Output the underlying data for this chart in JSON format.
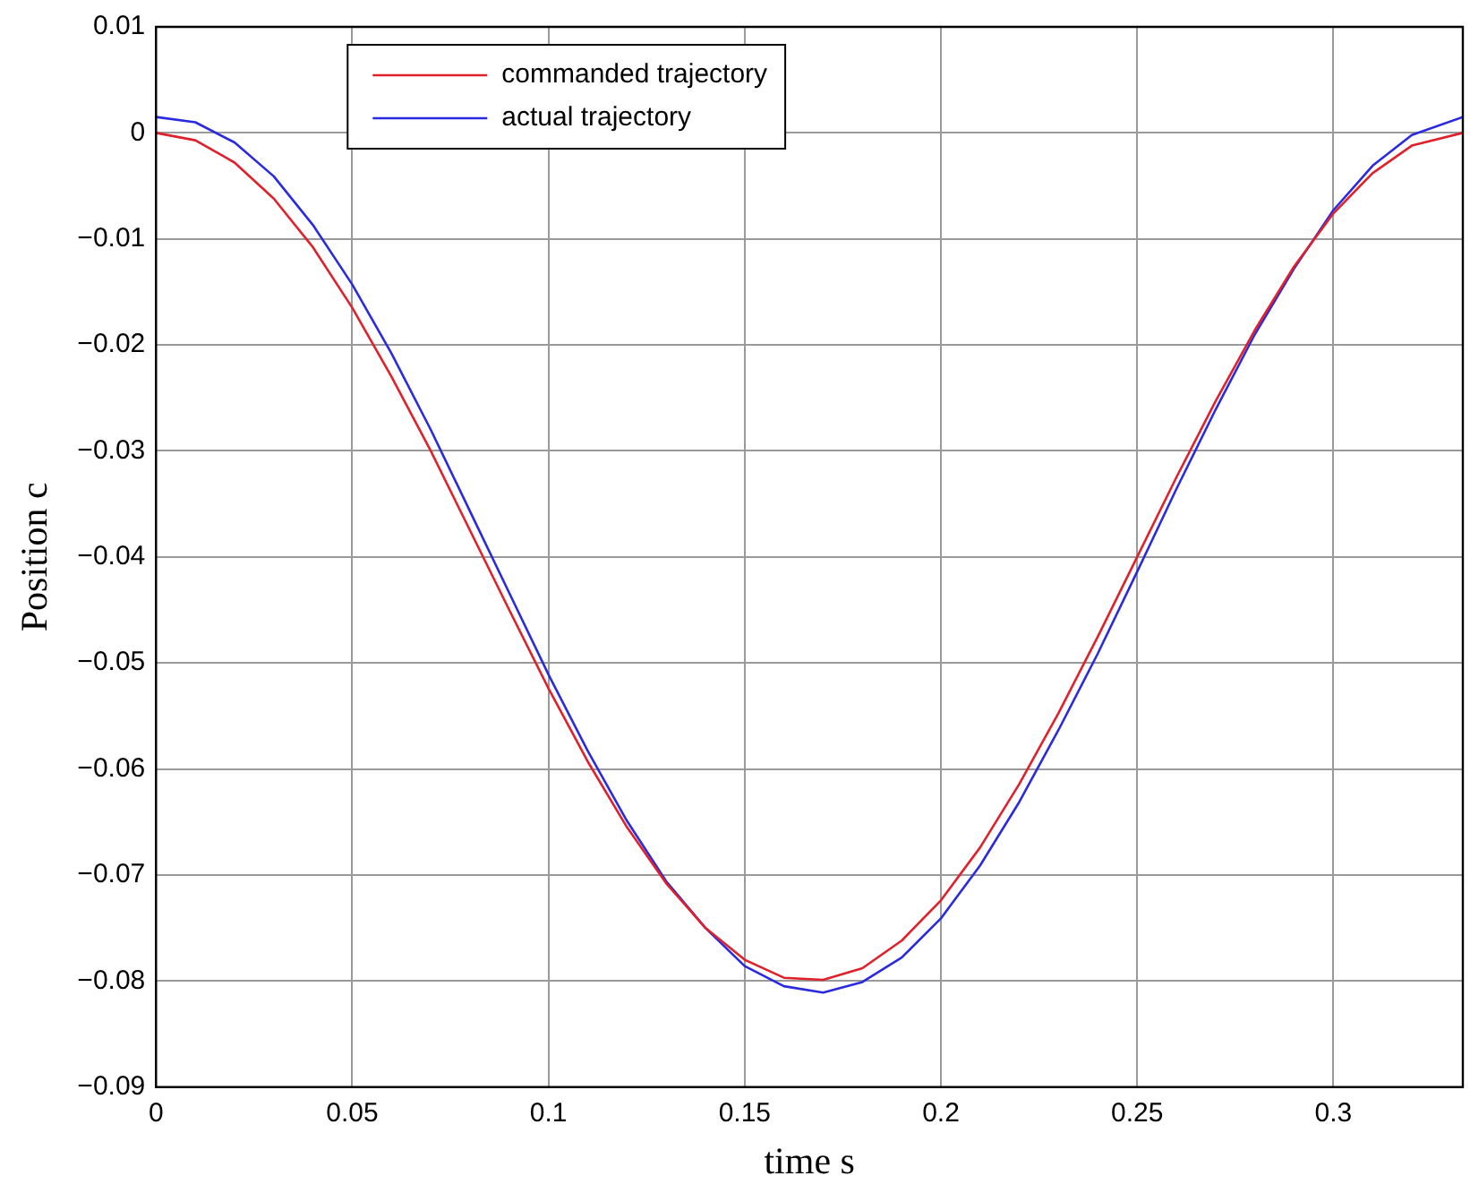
{
  "chart_data": {
    "type": "line",
    "xlabel": "time s",
    "ylabel": "Position c",
    "x": [
      0,
      0.01,
      0.02,
      0.03,
      0.04,
      0.05,
      0.06,
      0.07,
      0.08,
      0.09,
      0.1,
      0.11,
      0.12,
      0.13,
      0.14,
      0.15,
      0.16,
      0.17,
      0.18,
      0.19,
      0.2,
      0.21,
      0.22,
      0.23,
      0.24,
      0.25,
      0.26,
      0.27,
      0.28,
      0.29,
      0.3,
      0.31,
      0.32,
      0.333
    ],
    "series": [
      {
        "name": "commanded trajectory",
        "color": "#e0202a",
        "values": [
          0,
          -0.0007,
          -0.0028,
          -0.0062,
          -0.0108,
          -0.0165,
          -0.023,
          -0.03,
          -0.0375,
          -0.045,
          -0.0524,
          -0.0593,
          -0.0655,
          -0.0708,
          -0.075,
          -0.078,
          -0.0797,
          -0.0799,
          -0.0788,
          -0.0762,
          -0.0724,
          -0.0674,
          -0.0614,
          -0.0547,
          -0.0475,
          -0.04,
          -0.0325,
          -0.0253,
          -0.0186,
          -0.0126,
          -0.0076,
          -0.0038,
          -0.0012,
          0
        ]
      },
      {
        "name": "actual trajectory",
        "color": "#2a2ae0",
        "values": [
          0.0015,
          0.001,
          -0.0009,
          -0.0041,
          -0.0087,
          -0.0143,
          -0.0208,
          -0.028,
          -0.0357,
          -0.0434,
          -0.0511,
          -0.0583,
          -0.0649,
          -0.0706,
          -0.075,
          -0.0786,
          -0.0805,
          -0.0811,
          -0.0801,
          -0.0778,
          -0.0741,
          -0.0691,
          -0.0631,
          -0.0563,
          -0.0491,
          -0.0414,
          -0.0336,
          -0.0261,
          -0.019,
          -0.0128,
          -0.0073,
          -0.0031,
          -0.0002,
          0.0015
        ]
      }
    ],
    "xlim": [
      0,
      0.333
    ],
    "xticks": [
      0,
      0.05,
      0.1,
      0.15,
      0.2,
      0.25,
      0.3
    ],
    "ylim": [
      -0.09,
      0.01
    ],
    "yticks": [
      -0.09,
      -0.08,
      -0.07,
      -0.06,
      -0.05,
      -0.04,
      -0.03,
      -0.02,
      -0.01,
      0,
      0.01
    ],
    "grid": true,
    "legend": "top left",
    "line_style": "solid",
    "marker": "none"
  }
}
